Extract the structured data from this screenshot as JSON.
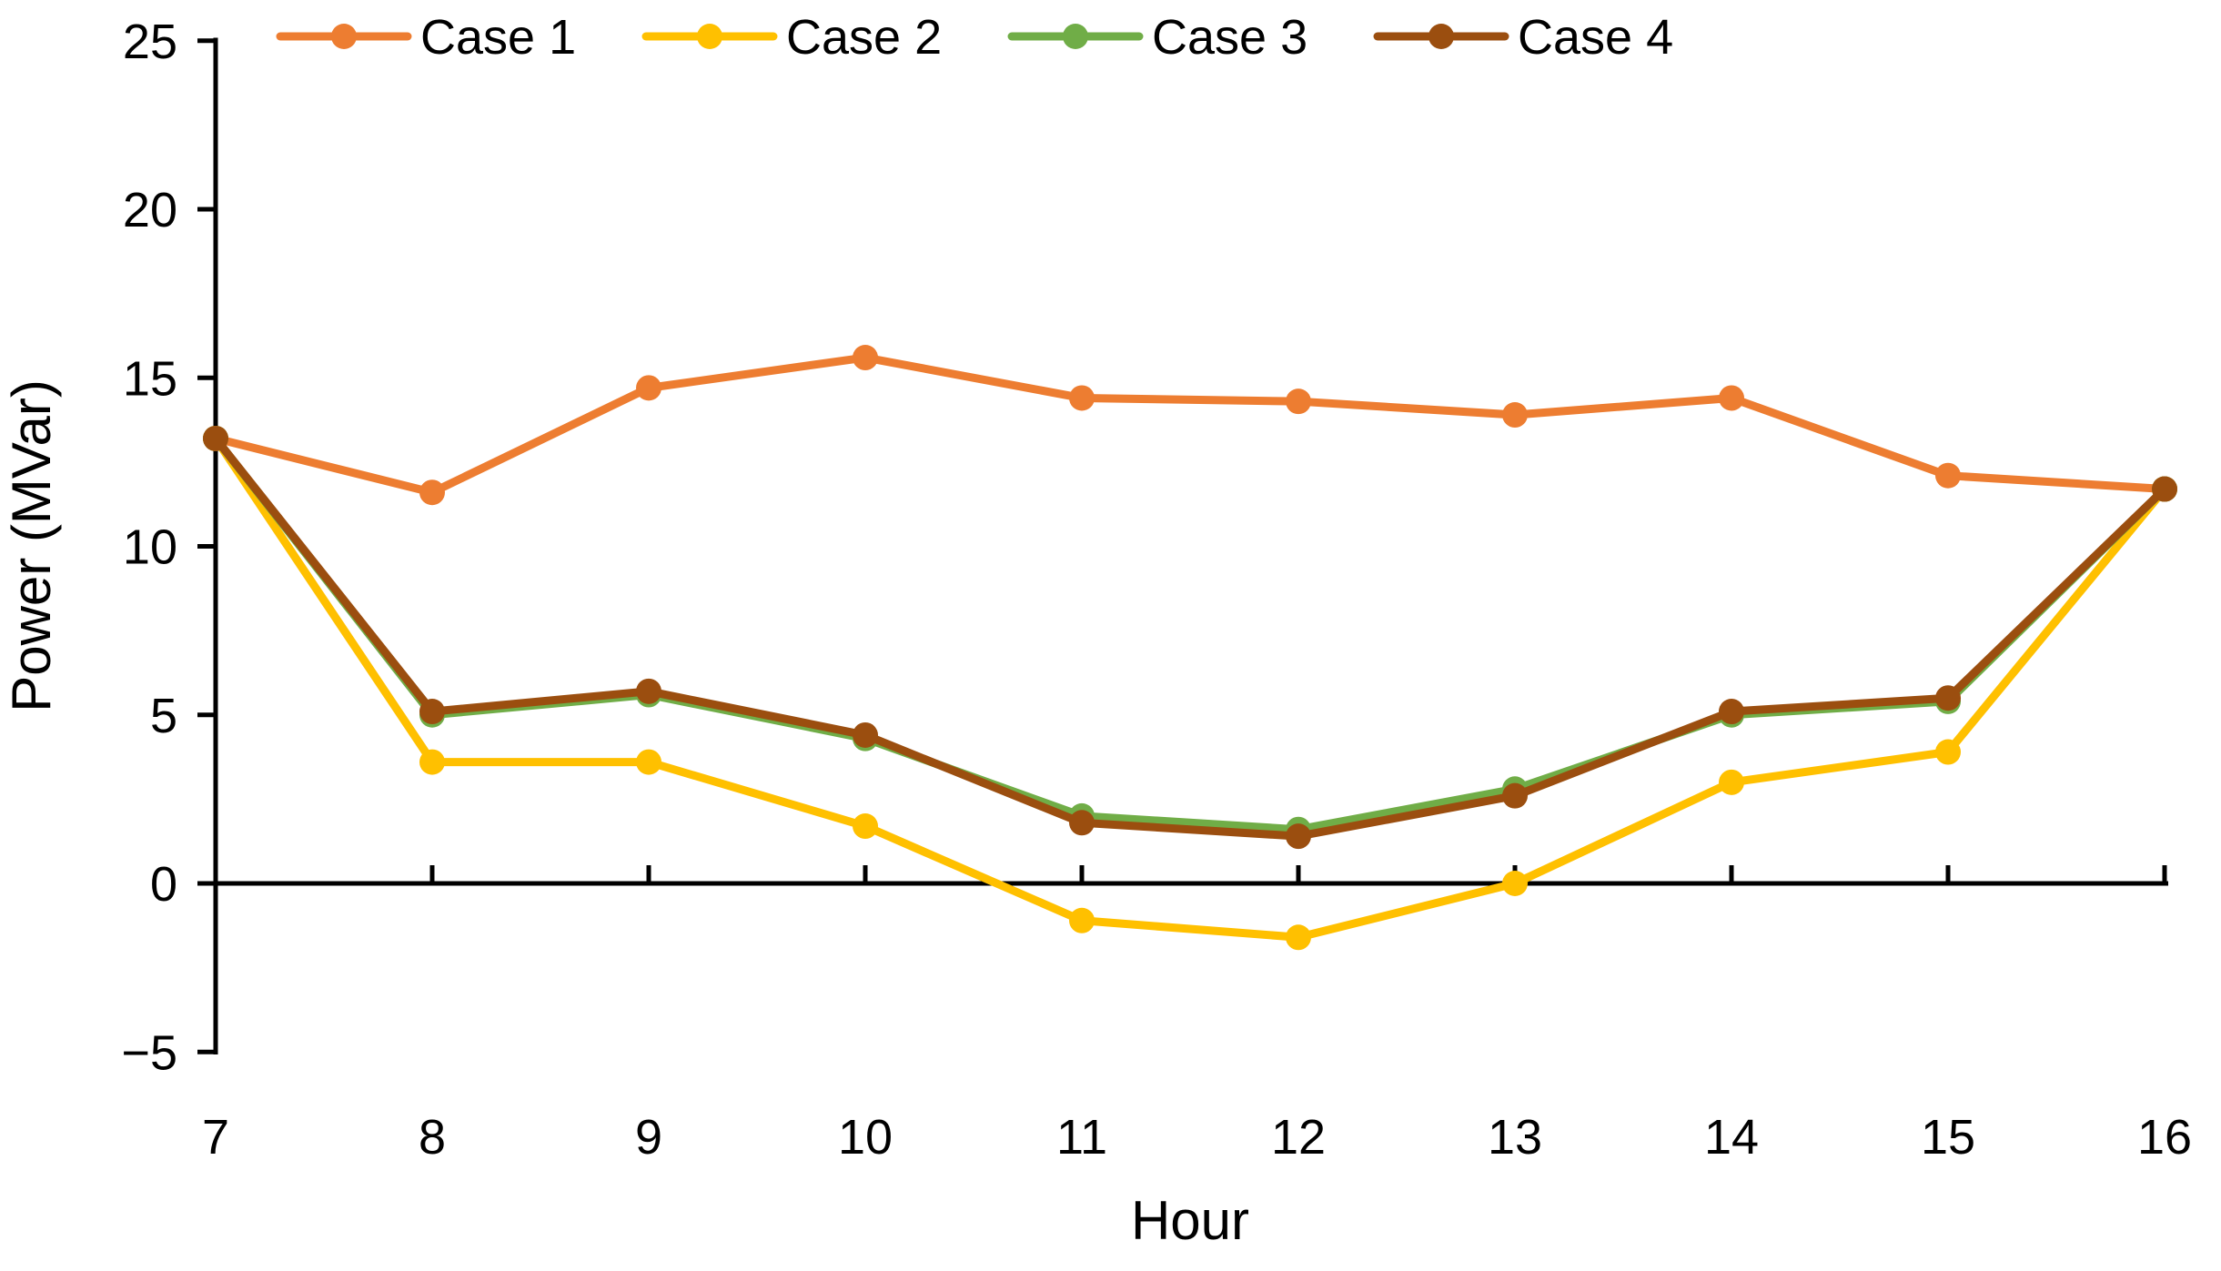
{
  "chart_data": {
    "type": "line",
    "title": "",
    "xlabel": "Hour",
    "ylabel": "Power (MVar)",
    "x": [
      7,
      8,
      9,
      10,
      11,
      12,
      13,
      14,
      15,
      16
    ],
    "x_tick_labels": [
      "7",
      "8",
      "9",
      "10",
      "11",
      "12",
      "13",
      "14",
      "15",
      "16"
    ],
    "y_ticks": [
      -5,
      0,
      5,
      10,
      15,
      20,
      25
    ],
    "y_tick_labels": [
      "−5",
      "0",
      "5",
      "10",
      "15",
      "20",
      "25"
    ],
    "xlim": [
      7,
      16
    ],
    "ylim": [
      -5,
      25
    ],
    "grid": false,
    "legend_position": "top",
    "axis_color": "#000000",
    "background_color": "#ffffff",
    "series": [
      {
        "name": "Case 1",
        "color": "#ED7D31",
        "values": [
          13.2,
          11.6,
          14.7,
          15.6,
          14.4,
          14.3,
          13.9,
          14.4,
          12.1,
          11.7
        ]
      },
      {
        "name": "Case 2",
        "color": "#FFC000",
        "values": [
          13.2,
          3.6,
          3.6,
          1.7,
          -1.1,
          -1.6,
          0.0,
          3.0,
          3.9,
          11.7
        ]
      },
      {
        "name": "Case 3",
        "color": "#70AD47",
        "values": [
          13.2,
          5.0,
          5.6,
          4.3,
          2.0,
          1.6,
          2.8,
          5.0,
          5.4,
          11.7
        ]
      },
      {
        "name": "Case 4",
        "color": "#9B4E0F",
        "values": [
          13.2,
          5.1,
          5.7,
          4.4,
          1.8,
          1.4,
          2.6,
          5.1,
          5.5,
          11.7
        ]
      }
    ]
  }
}
